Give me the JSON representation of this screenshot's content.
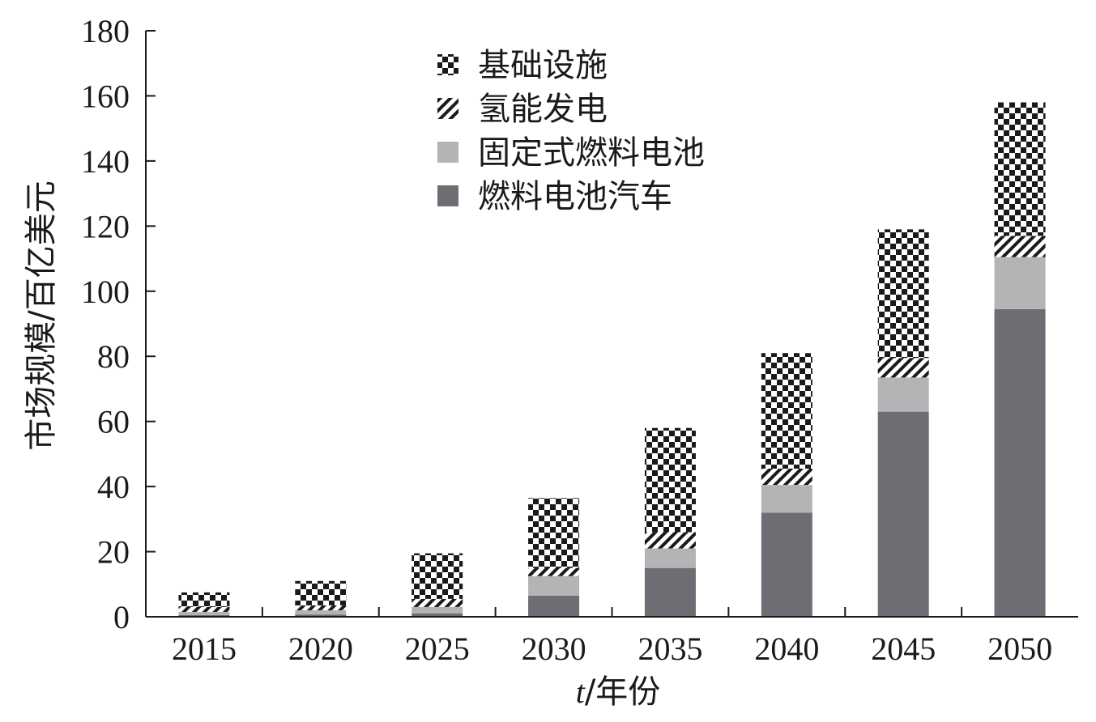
{
  "chart_data": {
    "type": "bar",
    "stacked": true,
    "categories": [
      "2015",
      "2020",
      "2025",
      "2030",
      "2035",
      "2040",
      "2045",
      "2050"
    ],
    "series": [
      {
        "name": "燃料电池汽车",
        "values": [
          0.5,
          0.7,
          1.0,
          6.5,
          15.0,
          32.0,
          63.0,
          94.5
        ],
        "color": "#6e6d73",
        "pattern": "solid"
      },
      {
        "name": "固定式燃料电池",
        "values": [
          1.0,
          1.3,
          2.0,
          6.0,
          6.0,
          8.5,
          10.5,
          16.0
        ],
        "color": "#b4b4b6",
        "pattern": "solid"
      },
      {
        "name": "氢能发电",
        "values": [
          1.5,
          1.5,
          2.5,
          2.5,
          5.0,
          5.0,
          6.0,
          6.5
        ],
        "color": "#1a1a1a",
        "pattern": "diagonal-hatch"
      },
      {
        "name": "基础设施",
        "values": [
          4.5,
          7.5,
          14.0,
          21.5,
          32.0,
          35.5,
          39.5,
          41.0
        ],
        "color": "#1a1a1a",
        "pattern": "checker"
      }
    ],
    "y_axis": {
      "label": "市场规模/百亿美元",
      "range": [
        0,
        180
      ],
      "ticks": [
        "0",
        "20",
        "40",
        "60",
        "80",
        "100",
        "120",
        "140",
        "160",
        "180"
      ]
    },
    "x_axis": {
      "label_italic": "t",
      "label_rest": "/年份"
    },
    "legend": {
      "placement": "top-center",
      "order": [
        "基础设施",
        "氢能发电",
        "固定式燃料电池",
        "燃料电池汽车"
      ]
    },
    "grid": false
  }
}
